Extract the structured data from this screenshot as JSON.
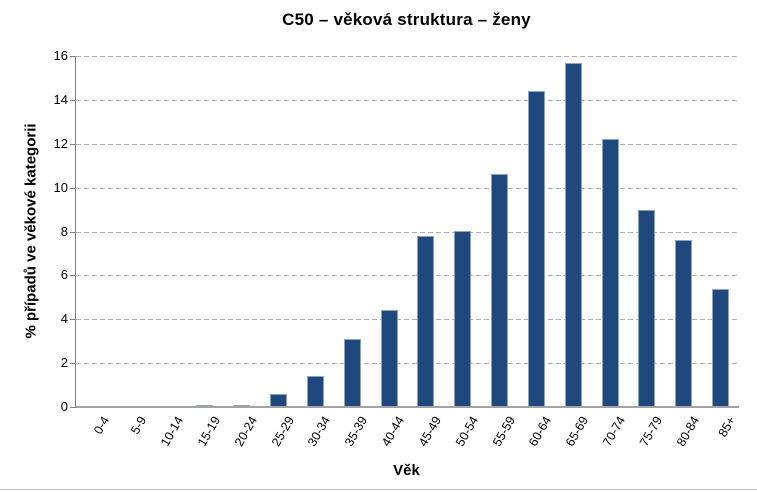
{
  "chart_data": {
    "type": "bar",
    "title": "C50 – věková struktura – ženy",
    "xlabel": "Věk",
    "ylabel": "% případů ve věkové kategorii",
    "categories": [
      "0-4",
      "5-9",
      "10-14",
      "15-19",
      "20-24",
      "25-29",
      "30-34",
      "35-39",
      "40-44",
      "45-49",
      "50-54",
      "55-59",
      "60-64",
      "65-69",
      "70-74",
      "75-79",
      "80-84",
      "85+"
    ],
    "values": [
      0,
      0,
      0,
      0.1,
      0.1,
      0.6,
      1.4,
      3.1,
      4.4,
      7.8,
      8.0,
      10.6,
      14.4,
      15.7,
      12.2,
      9.0,
      7.6,
      5.4
    ],
    "ylim": [
      0,
      16
    ],
    "ytick_step": 2,
    "grid": "horizontal-dashed",
    "legend": "none",
    "colors": {
      "bar_fill": "#1F497D",
      "bar_border": "#8CA3C4",
      "gridline": "#AEAEAE",
      "y_axis_line": "#808080",
      "x_axis_line": "#A3A3A3",
      "text": "#000000",
      "background": "#FFFFFF"
    }
  }
}
